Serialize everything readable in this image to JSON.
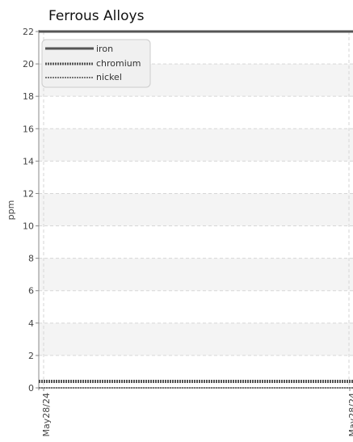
{
  "chart_data": {
    "type": "line",
    "title": "Ferrous Alloys",
    "ylabel": "ppm",
    "xlabel": "",
    "ylim": [
      0,
      22
    ],
    "yticks": [
      0,
      2,
      4,
      6,
      8,
      10,
      12,
      14,
      16,
      18,
      20,
      22
    ],
    "x_tick_labels": [
      "May28/24",
      "May28/24"
    ],
    "grid": true,
    "legend_position": "top-left",
    "series": [
      {
        "name": "iron",
        "values": [
          22,
          22
        ],
        "color": "#555555",
        "style": "solid"
      },
      {
        "name": "chromium",
        "values": [
          0.4,
          0.4
        ],
        "color": "#555555",
        "style": "dotted-thick"
      },
      {
        "name": "nickel",
        "values": [
          0,
          0
        ],
        "color": "#777777",
        "style": "dotted"
      }
    ]
  }
}
